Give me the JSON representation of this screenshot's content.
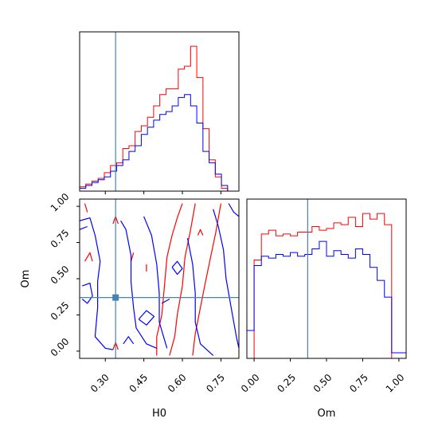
{
  "chart_data": [
    {
      "type": "histogram",
      "panel": "H0 marginal",
      "xlim": [
        0.2,
        0.82
      ],
      "xticks": [
        0.3,
        0.45,
        0.6,
        0.75
      ],
      "truth": 0.34,
      "bin_edges": [
        0.2,
        0.224,
        0.248,
        0.272,
        0.296,
        0.32,
        0.344,
        0.368,
        0.392,
        0.416,
        0.44,
        0.464,
        0.488,
        0.512,
        0.536,
        0.56,
        0.584,
        0.608,
        0.632,
        0.656,
        0.68,
        0.704,
        0.728,
        0.752,
        0.776,
        0.8
      ],
      "series": [
        {
          "color": "#ff0000",
          "counts": [
            3,
            5,
            7,
            9,
            13,
            18,
            20,
            30,
            32,
            42,
            46,
            52,
            60,
            68,
            72,
            72,
            86,
            88,
            102,
            80,
            44,
            22,
            10,
            2,
            0
          ]
        },
        {
          "color": "#0000ff",
          "counts": [
            2,
            4,
            6,
            8,
            10,
            14,
            18,
            22,
            28,
            32,
            40,
            45,
            50,
            54,
            56,
            60,
            66,
            68,
            60,
            48,
            28,
            20,
            12,
            4,
            0
          ]
        }
      ]
    },
    {
      "type": "histogram",
      "panel": "Om marginal",
      "xlim": [
        -0.05,
        1.05
      ],
      "xticks": [
        0.0,
        0.25,
        0.5,
        0.75,
        1.0
      ],
      "xlabel": "Om",
      "truth": 0.37,
      "bin_edges": [
        -0.05,
        0.0,
        0.05,
        0.1,
        0.15,
        0.2,
        0.25,
        0.3,
        0.35,
        0.4,
        0.45,
        0.5,
        0.55,
        0.6,
        0.65,
        0.7,
        0.75,
        0.8,
        0.85,
        0.9,
        0.95,
        1.0,
        1.05
      ],
      "series": [
        {
          "color": "#ff0000",
          "counts": [
            0,
            53,
            67,
            69,
            66,
            67,
            66,
            68,
            68,
            71,
            69,
            70,
            73,
            72,
            76,
            71,
            78,
            75,
            78,
            72,
            0,
            0
          ]
        },
        {
          "color": "#0000ff",
          "counts": [
            15,
            50,
            55,
            54,
            56,
            55,
            57,
            55,
            56,
            59,
            63,
            55,
            58,
            56,
            54,
            59,
            56,
            49,
            42,
            33,
            3,
            3
          ]
        }
      ]
    },
    {
      "type": "contour",
      "panel": "H0 vs Om joint",
      "xlabel": "H0",
      "ylabel": "Om",
      "xlim": [
        0.2,
        0.82
      ],
      "ylim": [
        -0.05,
        1.05
      ],
      "xticks": [
        0.3,
        0.45,
        0.6,
        0.75
      ],
      "yticks": [
        0.0,
        0.25,
        0.5,
        0.75,
        1.0
      ],
      "truth": [
        0.34,
        0.37
      ],
      "series": [
        {
          "color": "#ff0000",
          "contours": [
            [
              [
                0.5,
                -0.03
              ],
              [
                0.5,
                0.1
              ],
              [
                0.52,
                0.25
              ],
              [
                0.53,
                0.45
              ],
              [
                0.54,
                0.65
              ],
              [
                0.56,
                0.8
              ],
              [
                0.58,
                0.92
              ],
              [
                0.6,
                1.02
              ]
            ],
            [
              [
                0.55,
                -0.03
              ],
              [
                0.57,
                0.1
              ],
              [
                0.58,
                0.25
              ],
              [
                0.6,
                0.45
              ],
              [
                0.61,
                0.65
              ],
              [
                0.63,
                0.82
              ],
              [
                0.65,
                1.02
              ]
            ],
            [
              [
                0.64,
                -0.03
              ],
              [
                0.65,
                0.12
              ],
              [
                0.67,
                0.3
              ],
              [
                0.69,
                0.48
              ],
              [
                0.71,
                0.65
              ],
              [
                0.73,
                0.82
              ],
              [
                0.75,
                1.02
              ]
            ],
            [
              [
                0.23,
                0.96
              ],
              [
                0.22,
                1.02
              ]
            ],
            [
              [
                0.22,
                0.62
              ],
              [
                0.24,
                0.68
              ],
              [
                0.25,
                0.62
              ]
            ],
            [
              [
                0.33,
                0.88
              ],
              [
                0.34,
                0.93
              ],
              [
                0.35,
                0.88
              ]
            ],
            [
              [
                0.33,
                0.01
              ],
              [
                0.34,
                0.06
              ],
              [
                0.35,
                0.01
              ]
            ],
            [
              [
                0.4,
                0.62
              ],
              [
                0.41,
                0.68
              ]
            ],
            [
              [
                0.46,
                0.55
              ],
              [
                0.46,
                0.6
              ]
            ],
            [
              [
                0.66,
                0.8
              ],
              [
                0.67,
                0.84
              ],
              [
                0.68,
                0.8
              ]
            ]
          ]
        },
        {
          "color": "#0000ff",
          "contours": [
            [
              [
                0.2,
                0.9
              ],
              [
                0.24,
                0.92
              ],
              [
                0.26,
                0.8
              ],
              [
                0.28,
                0.62
              ],
              [
                0.27,
                0.48
              ],
              [
                0.27,
                0.3
              ],
              [
                0.26,
                0.1
              ],
              [
                0.3,
                0.02
              ],
              [
                0.33,
                0.01
              ]
            ],
            [
              [
                0.2,
                0.84
              ],
              [
                0.23,
                0.86
              ]
            ],
            [
              [
                0.36,
                0.9
              ],
              [
                0.38,
                0.84
              ],
              [
                0.4,
                0.66
              ],
              [
                0.4,
                0.48
              ],
              [
                0.41,
                0.3
              ],
              [
                0.42,
                0.16
              ],
              [
                0.46,
                0.05
              ],
              [
                0.5,
                0.02
              ]
            ],
            [
              [
                0.45,
                0.93
              ],
              [
                0.48,
                0.8
              ],
              [
                0.5,
                0.6
              ],
              [
                0.51,
                0.4
              ],
              [
                0.51,
                0.2
              ],
              [
                0.54,
                0.02
              ]
            ],
            [
              [
                0.62,
                0.78
              ],
              [
                0.64,
                0.6
              ],
              [
                0.65,
                0.4
              ],
              [
                0.65,
                0.2
              ],
              [
                0.67,
                0.05
              ],
              [
                0.72,
                -0.03
              ]
            ],
            [
              [
                0.72,
                0.98
              ],
              [
                0.74,
                0.86
              ],
              [
                0.76,
                0.7
              ],
              [
                0.77,
                0.5
              ],
              [
                0.79,
                0.3
              ],
              [
                0.81,
                0.1
              ],
              [
                0.82,
                0.02
              ]
            ],
            [
              [
                0.78,
                1.02
              ],
              [
                0.8,
                0.96
              ],
              [
                0.82,
                0.93
              ]
            ],
            [
              [
                0.21,
                0.45
              ],
              [
                0.24,
                0.47
              ],
              [
                0.25,
                0.38
              ],
              [
                0.23,
                0.33
              ],
              [
                0.21,
                0.36
              ]
            ],
            [
              [
                0.43,
                0.22
              ],
              [
                0.46,
                0.28
              ],
              [
                0.49,
                0.24
              ],
              [
                0.46,
                0.18
              ],
              [
                0.43,
                0.22
              ]
            ],
            [
              [
                0.52,
                0.33
              ],
              [
                0.55,
                0.36
              ]
            ],
            [
              [
                0.56,
                0.58
              ],
              [
                0.58,
                0.62
              ],
              [
                0.6,
                0.57
              ],
              [
                0.58,
                0.53
              ],
              [
                0.56,
                0.58
              ]
            ],
            [
              [
                0.37,
                0.05
              ],
              [
                0.39,
                0.1
              ],
              [
                0.41,
                0.05
              ]
            ]
          ]
        }
      ]
    }
  ]
}
